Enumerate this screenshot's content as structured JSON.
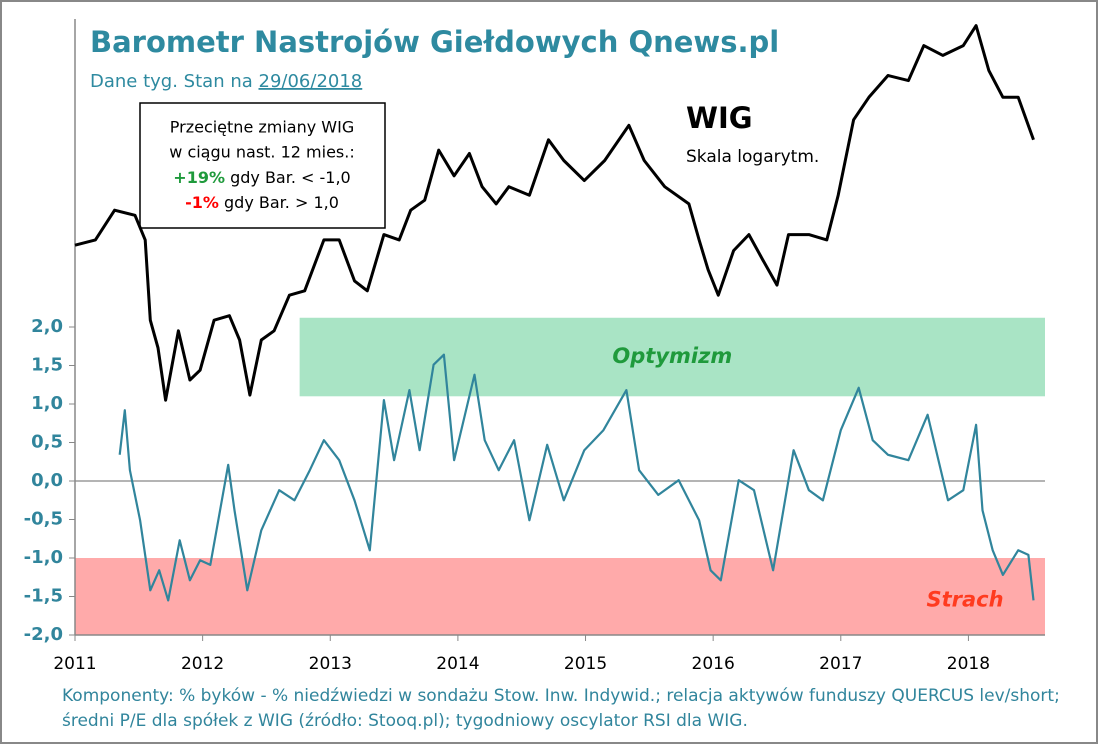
{
  "chart_data": {
    "type": "line",
    "title": "Barometr Nastrojów Giełdowych Qnews.pl",
    "subtitle": "Dane tyg. Stan na",
    "subtitle_date": "29/06/2018",
    "xlim": [
      2011,
      2018.6
    ],
    "xticks": [
      2011,
      2012,
      2013,
      2014,
      2015,
      2016,
      2017,
      2018
    ],
    "ylim": [
      -2,
      6
    ],
    "yticks": [
      {
        "value": 2,
        "label": "2,0"
      },
      {
        "value": 1.5,
        "label": "1,5"
      },
      {
        "value": 1,
        "label": "1,0"
      },
      {
        "value": 0.5,
        "label": "0,5"
      },
      {
        "value": 0,
        "label": "0,0"
      },
      {
        "value": -0.5,
        "label": "-0,5"
      },
      {
        "value": -1,
        "label": "-1,0"
      },
      {
        "value": -1.5,
        "label": "-1,5"
      },
      {
        "value": -2,
        "label": "-2,0"
      }
    ],
    "y2lim": [
      25500,
      67700
    ],
    "y2scale": "log",
    "y2_note": "Skala logarytm.",
    "series": [
      {
        "name": "WIG",
        "color": "#000000",
        "axis": "y2",
        "x": [
          2011.0,
          2011.16,
          2011.31,
          2011.47,
          2011.55,
          2011.59,
          2011.65,
          2011.71,
          2011.81,
          2011.9,
          2011.98,
          2012.09,
          2012.21,
          2012.29,
          2012.37,
          2012.46,
          2012.56,
          2012.68,
          2012.8,
          2012.95,
          2013.07,
          2013.19,
          2013.29,
          2013.42,
          2013.54,
          2013.63,
          2013.74,
          2013.85,
          2013.97,
          2014.09,
          2014.19,
          2014.3,
          2014.4,
          2014.56,
          2014.71,
          2014.83,
          2014.99,
          2015.15,
          2015.34,
          2015.46,
          2015.62,
          2015.81,
          2015.89,
          2015.96,
          2016.04,
          2016.16,
          2016.28,
          2016.39,
          2016.5,
          2016.59,
          2016.75,
          2016.89,
          2016.98,
          2017.1,
          2017.22,
          2017.37,
          2017.53,
          2017.65,
          2017.8,
          2017.96,
          2018.06,
          2018.16,
          2018.27,
          2018.39,
          2018.51
        ],
        "values": [
          47300,
          47700,
          50000,
          49600,
          47700,
          42000,
          40200,
          37000,
          41300,
          38200,
          38800,
          42000,
          42300,
          40700,
          37300,
          40700,
          41300,
          43700,
          44000,
          47700,
          47700,
          44700,
          44000,
          48100,
          47700,
          50000,
          50800,
          55000,
          52800,
          54700,
          51900,
          50500,
          51900,
          51200,
          55900,
          54100,
          52400,
          54100,
          57200,
          54100,
          51900,
          50500,
          47700,
          45500,
          43700,
          46900,
          48100,
          46200,
          44400,
          48100,
          48100,
          47700,
          51200,
          57700,
          59800,
          61900,
          61400,
          64900,
          63900,
          64900,
          67000,
          62400,
          59800,
          59800,
          55900
        ]
      },
      {
        "color": "#31859c",
        "x": [
          2011.35,
          2011.39,
          2011.43,
          2011.51,
          2011.59,
          2011.66,
          2011.73,
          2011.82,
          2011.9,
          2011.98,
          2012.06,
          2012.2,
          2012.25,
          2012.35,
          2012.46,
          2012.6,
          2012.72,
          2012.84,
          2012.95,
          2013.07,
          2013.19,
          2013.31,
          2013.42,
          2013.5,
          2013.62,
          2013.7,
          2013.81,
          2013.89,
          2013.97,
          2014.13,
          2014.21,
          2014.32,
          2014.44,
          2014.56,
          2014.7,
          2014.83,
          2014.99,
          2015.14,
          2015.32,
          2015.42,
          2015.57,
          2015.73,
          2015.89,
          2015.98,
          2016.06,
          2016.2,
          2016.32,
          2016.47,
          2016.63,
          2016.75,
          2016.86,
          2017.0,
          2017.14,
          2017.25,
          2017.37,
          2017.53,
          2017.68,
          2017.84,
          2017.96,
          2018.06,
          2018.11,
          2018.19,
          2018.27,
          2018.39,
          2018.47,
          2018.51
        ],
        "values": [
          0.34,
          0.92,
          0.14,
          -0.51,
          -1.42,
          -1.16,
          -1.55,
          -0.77,
          -1.29,
          -1.03,
          -1.09,
          0.21,
          -0.38,
          -1.42,
          -0.64,
          -0.12,
          -0.25,
          0.14,
          0.53,
          0.27,
          -0.25,
          -0.9,
          1.05,
          0.27,
          1.18,
          0.4,
          1.51,
          1.64,
          0.27,
          1.38,
          0.53,
          0.14,
          0.53,
          -0.51,
          0.47,
          -0.25,
          0.4,
          0.66,
          1.18,
          0.14,
          -0.18,
          0.01,
          -0.51,
          -1.16,
          -1.29,
          0.01,
          -0.12,
          -1.16,
          0.4,
          -0.12,
          -0.25,
          0.66,
          1.21,
          0.53,
          0.34,
          0.27,
          0.86,
          -0.25,
          -0.12,
          0.73,
          -0.38,
          -0.9,
          -1.22,
          -0.9,
          -0.96,
          -1.55
        ]
      }
    ],
    "bands": [
      {
        "label": "Optymizm",
        "from": 1.1,
        "to": 2.12,
        "x_from": 2012.76,
        "x_to": 2018.6,
        "color": "#a9e4c5",
        "label_color": "#1f9a3c"
      },
      {
        "label": "Strach",
        "from": -2,
        "to": -1,
        "x_from": 2011,
        "x_to": 2018.6,
        "color": "#ffaaaa",
        "label_color": "#ff3b1f"
      }
    ],
    "box": {
      "lines": [
        "Przeciętne zmiany WIG",
        "w ciągu nast. 12 mies.:"
      ],
      "rows": [
        {
          "pct": "+19%",
          "color": "#1f9a3c",
          "text": "gdy Bar. < -1,0"
        },
        {
          "pct": "-1%",
          "color": "#ff0000",
          "text": "gdy Bar. > 1,0"
        }
      ]
    },
    "footnote": "Komponenty: % byków - % niedźwiedzi w sondażu Stow. Inw. Indywid.; relacja aktywów funduszy QUERCUS lev/short; średni P/E dla spółek z WIG (źródło: Stooq.pl); tygodniowy oscylator RSI dla WIG."
  }
}
